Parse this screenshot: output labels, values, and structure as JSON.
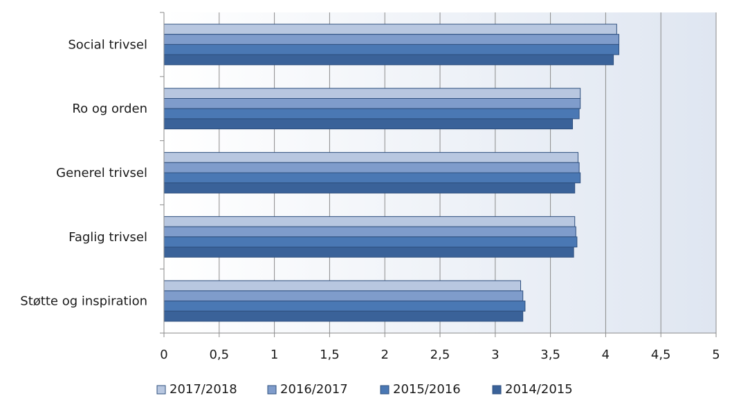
{
  "chart_data": {
    "type": "bar",
    "orientation": "horizontal",
    "categories": [
      "Social trivsel",
      "Ro og orden",
      "Generel trivsel",
      "Faglig trivsel",
      "Støtte og inspiration"
    ],
    "series": [
      {
        "name": "2017/2018",
        "color": "#b8c7e0",
        "values": [
          4.1,
          3.77,
          3.75,
          3.72,
          3.23
        ]
      },
      {
        "name": "2016/2017",
        "color": "#7f9ccb",
        "values": [
          4.12,
          3.77,
          3.76,
          3.73,
          3.25
        ]
      },
      {
        "name": "2015/2016",
        "color": "#4a78b4",
        "values": [
          4.12,
          3.76,
          3.77,
          3.74,
          3.27
        ]
      },
      {
        "name": "2014/2015",
        "color": "#3a6299",
        "values": [
          4.07,
          3.7,
          3.72,
          3.71,
          3.25
        ]
      }
    ],
    "xlim": [
      0,
      5
    ],
    "xticks": [
      "0",
      "0,5",
      "1",
      "1,5",
      "2",
      "2,5",
      "3",
      "3,5",
      "4",
      "4,5",
      "5"
    ],
    "grid": "vertical",
    "legend": "bottom",
    "title": "",
    "xlabel": "",
    "ylabel": ""
  }
}
